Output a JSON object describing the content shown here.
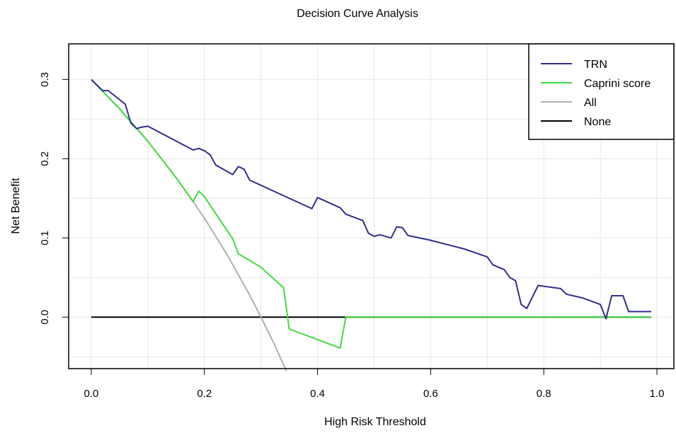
{
  "chart_data": {
    "type": "line",
    "title": "Decision Curve Analysis",
    "xlabel": "High Risk Threshold",
    "ylabel": "Net Benefit",
    "xlim": [
      -0.04,
      1.03
    ],
    "ylim": [
      -0.065,
      0.345
    ],
    "x_ticks": [
      "0.0",
      "0.2",
      "0.4",
      "0.6",
      "0.8",
      "1.0"
    ],
    "x_tick_values": [
      0,
      0.2,
      0.4,
      0.6,
      0.8,
      1.0
    ],
    "y_ticks": [
      "0.0",
      "0.1",
      "0.2",
      "0.3"
    ],
    "y_tick_values": [
      0,
      0.1,
      0.2,
      0.3
    ],
    "grid": true,
    "legend_position": "top-right",
    "series": [
      {
        "name": "TRN",
        "color": "#2e2e8c",
        "points": [
          [
            0.0,
            0.3
          ],
          [
            0.02,
            0.286
          ],
          [
            0.03,
            0.286
          ],
          [
            0.06,
            0.269
          ],
          [
            0.07,
            0.245
          ],
          [
            0.08,
            0.238
          ],
          [
            0.09,
            0.24
          ],
          [
            0.1,
            0.241
          ],
          [
            0.18,
            0.211
          ],
          [
            0.19,
            0.213
          ],
          [
            0.2,
            0.21
          ],
          [
            0.21,
            0.205
          ],
          [
            0.22,
            0.192
          ],
          [
            0.25,
            0.18
          ],
          [
            0.26,
            0.19
          ],
          [
            0.27,
            0.187
          ],
          [
            0.28,
            0.173
          ],
          [
            0.39,
            0.137
          ],
          [
            0.4,
            0.151
          ],
          [
            0.44,
            0.138
          ],
          [
            0.45,
            0.13
          ],
          [
            0.48,
            0.122
          ],
          [
            0.49,
            0.106
          ],
          [
            0.5,
            0.102
          ],
          [
            0.51,
            0.104
          ],
          [
            0.53,
            0.1
          ],
          [
            0.54,
            0.114
          ],
          [
            0.55,
            0.113
          ],
          [
            0.56,
            0.103
          ],
          [
            0.6,
            0.097
          ],
          [
            0.66,
            0.086
          ],
          [
            0.7,
            0.076
          ],
          [
            0.71,
            0.066
          ],
          [
            0.73,
            0.06
          ],
          [
            0.74,
            0.05
          ],
          [
            0.75,
            0.046
          ],
          [
            0.76,
            0.016
          ],
          [
            0.77,
            0.011
          ],
          [
            0.79,
            0.04
          ],
          [
            0.83,
            0.036
          ],
          [
            0.84,
            0.029
          ],
          [
            0.87,
            0.024
          ],
          [
            0.9,
            0.016
          ],
          [
            0.91,
            -0.002
          ],
          [
            0.92,
            0.027
          ],
          [
            0.94,
            0.027
          ],
          [
            0.95,
            0.007
          ],
          [
            0.99,
            0.007
          ]
        ]
      },
      {
        "name": "Caprini score",
        "color": "#3ddc3d",
        "points": [
          [
            0.0,
            0.3
          ],
          [
            0.05,
            0.263
          ],
          [
            0.1,
            0.222
          ],
          [
            0.15,
            0.176
          ],
          [
            0.18,
            0.146
          ],
          [
            0.19,
            0.159
          ],
          [
            0.2,
            0.152
          ],
          [
            0.25,
            0.099
          ],
          [
            0.26,
            0.08
          ],
          [
            0.3,
            0.063
          ],
          [
            0.34,
            0.037
          ],
          [
            0.35,
            -0.015
          ],
          [
            0.44,
            -0.039
          ],
          [
            0.45,
            0.0
          ],
          [
            0.99,
            0.0
          ]
        ]
      },
      {
        "name": "All",
        "color": "#b0b0b0",
        "points": [
          [
            0.0,
            0.3
          ],
          [
            0.05,
            0.263
          ],
          [
            0.1,
            0.222
          ],
          [
            0.15,
            0.176
          ],
          [
            0.18,
            0.146
          ],
          [
            0.2,
            0.125
          ],
          [
            0.24,
            0.079
          ],
          [
            0.28,
            0.028
          ],
          [
            0.3,
            0.0
          ],
          [
            0.32,
            -0.029
          ],
          [
            0.345,
            -0.068
          ]
        ]
      },
      {
        "name": "None",
        "color": "#000000",
        "points": [
          [
            0.0,
            0.0
          ],
          [
            0.99,
            0.0
          ]
        ]
      }
    ]
  }
}
